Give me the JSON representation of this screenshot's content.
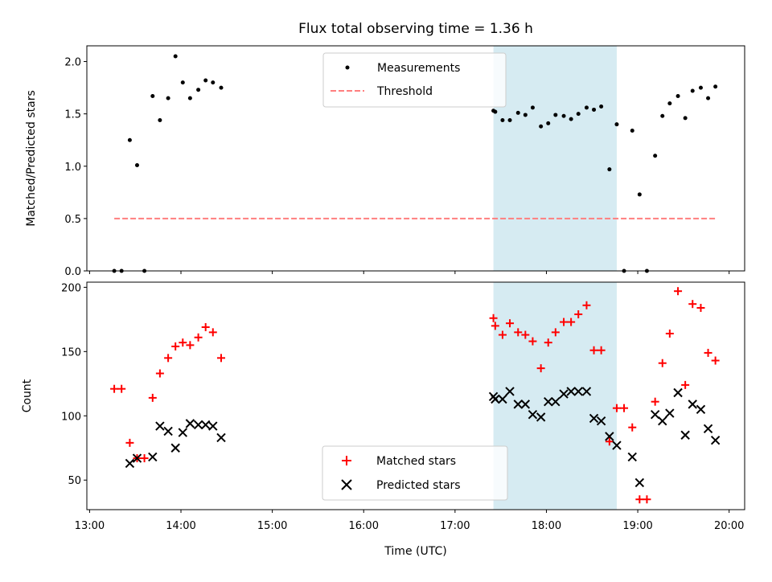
{
  "chart_data": {
    "title": "Flux total observing time = 1.36 h",
    "xlabel": "Time (UTC)",
    "x_range_hours": [
      12.97,
      20.17
    ],
    "x_ticks": [
      {
        "value": 13,
        "label": "13:00"
      },
      {
        "value": 14,
        "label": "14:00"
      },
      {
        "value": 15,
        "label": "15:00"
      },
      {
        "value": 16,
        "label": "16:00"
      },
      {
        "value": 17,
        "label": "17:00"
      },
      {
        "value": 18,
        "label": "18:00"
      },
      {
        "value": 19,
        "label": "19:00"
      },
      {
        "value": 20,
        "label": "20:00"
      }
    ],
    "highlight_span": {
      "start": 17.42,
      "end": 18.77,
      "color": "#add8e6"
    },
    "panels": [
      {
        "type": "scatter",
        "ylabel": "Matched/Predicted stars",
        "ylim": [
          0,
          2.15
        ],
        "y_ticks": [
          {
            "value": 0,
            "label": "0.0"
          },
          {
            "value": 0.5,
            "label": "0.5"
          },
          {
            "value": 1.0,
            "label": "1.0"
          },
          {
            "value": 1.5,
            "label": "1.5"
          },
          {
            "value": 2.0,
            "label": "2.0"
          }
        ],
        "legend": {
          "position": "upper center",
          "entries": [
            "Measurements",
            "Threshold"
          ]
        },
        "series": [
          {
            "name": "Measurements",
            "marker": "dot",
            "color": "#000000",
            "points": [
              [
                13.27,
                0.0
              ],
              [
                13.35,
                0.0
              ],
              [
                13.44,
                1.25
              ],
              [
                13.52,
                1.01
              ],
              [
                13.6,
                0.0
              ],
              [
                13.69,
                1.67
              ],
              [
                13.77,
                1.44
              ],
              [
                13.86,
                1.65
              ],
              [
                13.94,
                2.05
              ],
              [
                14.02,
                1.8
              ],
              [
                14.1,
                1.65
              ],
              [
                14.19,
                1.73
              ],
              [
                14.27,
                1.82
              ],
              [
                14.35,
                1.8
              ],
              [
                14.44,
                1.75
              ],
              [
                17.42,
                1.53
              ],
              [
                17.44,
                1.52
              ],
              [
                17.52,
                1.44
              ],
              [
                17.6,
                1.44
              ],
              [
                17.69,
                1.51
              ],
              [
                17.77,
                1.49
              ],
              [
                17.85,
                1.56
              ],
              [
                17.94,
                1.38
              ],
              [
                18.02,
                1.41
              ],
              [
                18.1,
                1.49
              ],
              [
                18.19,
                1.48
              ],
              [
                18.27,
                1.45
              ],
              [
                18.35,
                1.5
              ],
              [
                18.44,
                1.56
              ],
              [
                18.52,
                1.54
              ],
              [
                18.6,
                1.57
              ],
              [
                18.69,
                0.97
              ],
              [
                18.77,
                1.4
              ],
              [
                18.85,
                0.0
              ],
              [
                18.94,
                1.34
              ],
              [
                19.02,
                0.73
              ],
              [
                19.1,
                0.0
              ],
              [
                19.19,
                1.1
              ],
              [
                19.27,
                1.48
              ],
              [
                19.35,
                1.6
              ],
              [
                19.44,
                1.67
              ],
              [
                19.52,
                1.46
              ],
              [
                19.6,
                1.72
              ],
              [
                19.69,
                1.75
              ],
              [
                19.77,
                1.65
              ],
              [
                19.85,
                1.76
              ]
            ]
          },
          {
            "name": "Threshold",
            "marker": "dashed-line",
            "color": "#ff7f7f",
            "points": [
              [
                13.27,
                0.5
              ],
              [
                19.85,
                0.5
              ]
            ]
          }
        ]
      },
      {
        "type": "scatter",
        "ylabel": "Count",
        "ylim": [
          27,
          204
        ],
        "y_ticks": [
          {
            "value": 50,
            "label": "50"
          },
          {
            "value": 100,
            "label": "100"
          },
          {
            "value": 150,
            "label": "150"
          },
          {
            "value": 200,
            "label": "200"
          }
        ],
        "legend": {
          "position": "lower center",
          "entries": [
            "Matched stars",
            "Predicted stars"
          ]
        },
        "series": [
          {
            "name": "Matched stars",
            "marker": "plus",
            "color": "#ff0000",
            "points": [
              [
                13.27,
                121
              ],
              [
                13.35,
                121
              ],
              [
                13.44,
                79
              ],
              [
                13.52,
                67
              ],
              [
                13.6,
                67
              ],
              [
                13.69,
                114
              ],
              [
                13.77,
                133
              ],
              [
                13.86,
                145
              ],
              [
                13.94,
                154
              ],
              [
                14.02,
                157
              ],
              [
                14.1,
                155
              ],
              [
                14.19,
                161
              ],
              [
                14.27,
                169
              ],
              [
                14.35,
                165
              ],
              [
                14.44,
                145
              ],
              [
                17.42,
                176
              ],
              [
                17.44,
                170
              ],
              [
                17.52,
                163
              ],
              [
                17.6,
                172
              ],
              [
                17.69,
                165
              ],
              [
                17.77,
                163
              ],
              [
                17.85,
                158
              ],
              [
                17.94,
                137
              ],
              [
                18.02,
                157
              ],
              [
                18.1,
                165
              ],
              [
                18.19,
                173
              ],
              [
                18.27,
                173
              ],
              [
                18.35,
                179
              ],
              [
                18.44,
                186
              ],
              [
                18.52,
                151
              ],
              [
                18.6,
                151
              ],
              [
                18.69,
                80
              ],
              [
                18.77,
                106
              ],
              [
                18.85,
                106
              ],
              [
                18.94,
                91
              ],
              [
                19.02,
                35
              ],
              [
                19.1,
                35
              ],
              [
                19.19,
                111
              ],
              [
                19.27,
                141
              ],
              [
                19.35,
                164
              ],
              [
                19.44,
                197
              ],
              [
                19.52,
                124
              ],
              [
                19.6,
                187
              ],
              [
                19.69,
                184
              ],
              [
                19.77,
                149
              ],
              [
                19.85,
                143
              ]
            ]
          },
          {
            "name": "Predicted stars",
            "marker": "x",
            "color": "#000000",
            "points": [
              [
                13.44,
                63
              ],
              [
                13.52,
                67
              ],
              [
                13.69,
                68
              ],
              [
                13.77,
                92
              ],
              [
                13.86,
                88
              ],
              [
                13.94,
                75
              ],
              [
                14.02,
                87
              ],
              [
                14.1,
                94
              ],
              [
                14.19,
                93
              ],
              [
                14.27,
                93
              ],
              [
                14.35,
                92
              ],
              [
                14.44,
                83
              ],
              [
                17.42,
                115
              ],
              [
                17.44,
                113
              ],
              [
                17.52,
                113
              ],
              [
                17.6,
                119
              ],
              [
                17.69,
                109
              ],
              [
                17.77,
                109
              ],
              [
                17.85,
                101
              ],
              [
                17.94,
                99
              ],
              [
                18.02,
                111
              ],
              [
                18.1,
                111
              ],
              [
                18.19,
                117
              ],
              [
                18.27,
                119
              ],
              [
                18.35,
                119
              ],
              [
                18.44,
                119
              ],
              [
                18.52,
                98
              ],
              [
                18.6,
                96
              ],
              [
                18.69,
                84
              ],
              [
                18.77,
                77
              ],
              [
                18.94,
                68
              ],
              [
                19.02,
                48
              ],
              [
                19.19,
                101
              ],
              [
                19.27,
                96
              ],
              [
                19.35,
                102
              ],
              [
                19.44,
                118
              ],
              [
                19.52,
                85
              ],
              [
                19.6,
                109
              ],
              [
                19.69,
                105
              ],
              [
                19.77,
                90
              ],
              [
                19.85,
                81
              ]
            ]
          }
        ]
      }
    ]
  }
}
